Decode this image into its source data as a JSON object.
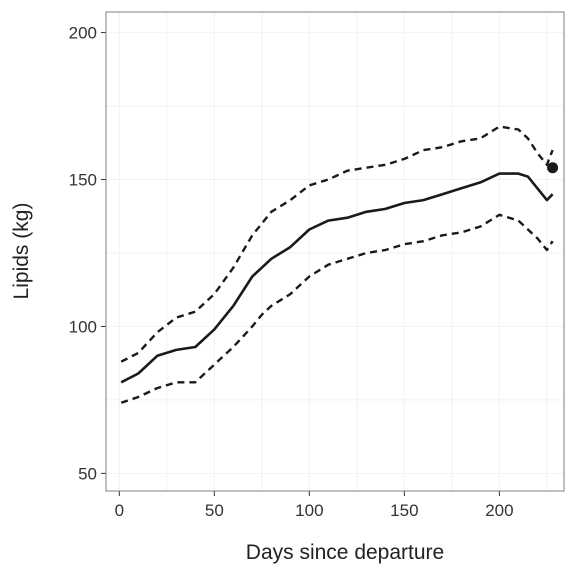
{
  "chart_data": {
    "type": "line",
    "title": "",
    "xlabel": "Days since departure",
    "ylabel": "Lipids (kg)",
    "xlim": [
      -7,
      234
    ],
    "ylim": [
      44,
      207
    ],
    "xticks": [
      0,
      50,
      100,
      150,
      200
    ],
    "xtick_labels": [
      "0",
      "50",
      "100",
      "150",
      "200"
    ],
    "yticks": [
      50,
      100,
      150,
      200
    ],
    "ytick_labels": [
      "50",
      "100",
      "150",
      "200"
    ],
    "grid": true,
    "legend": "none",
    "colors": {
      "line": "#1a1a1a",
      "grid": "#f2f2f2",
      "frame": "#7f7f7f",
      "background": "#ffffff"
    },
    "series": [
      {
        "style": "dashed",
        "x": [
          1,
          10,
          20,
          30,
          40,
          50,
          60,
          70,
          75,
          80,
          90,
          100,
          110,
          120,
          130,
          140,
          150,
          160,
          170,
          180,
          190,
          200,
          210,
          215,
          220,
          225,
          228
        ],
        "y": [
          88,
          91,
          98,
          103,
          105,
          111,
          120,
          131,
          135,
          139,
          143,
          148,
          150,
          153,
          154,
          155,
          157,
          160,
          161,
          163,
          164,
          168,
          167,
          164,
          159,
          155,
          160
        ]
      },
      {
        "style": "solid",
        "x": [
          1,
          10,
          20,
          30,
          40,
          50,
          60,
          70,
          75,
          80,
          90,
          100,
          110,
          120,
          130,
          140,
          150,
          160,
          170,
          180,
          190,
          200,
          210,
          215,
          220,
          225,
          228
        ],
        "y": [
          81,
          84,
          90,
          92,
          93,
          99,
          107,
          117,
          120,
          123,
          127,
          133,
          136,
          137,
          139,
          140,
          142,
          143,
          145,
          147,
          149,
          152,
          152,
          151,
          147,
          143,
          145
        ]
      },
      {
        "style": "dashed",
        "x": [
          1,
          10,
          20,
          30,
          40,
          50,
          60,
          70,
          75,
          80,
          90,
          100,
          110,
          120,
          130,
          140,
          150,
          160,
          170,
          180,
          190,
          200,
          210,
          215,
          220,
          225,
          228
        ],
        "y": [
          74,
          76,
          79,
          81,
          81,
          87,
          93,
          100,
          104,
          107,
          111,
          117,
          121,
          123,
          125,
          126,
          128,
          129,
          131,
          132,
          134,
          138,
          136,
          133,
          130,
          126,
          129
        ]
      }
    ],
    "points": [
      {
        "x": 228,
        "y": 154
      }
    ]
  }
}
